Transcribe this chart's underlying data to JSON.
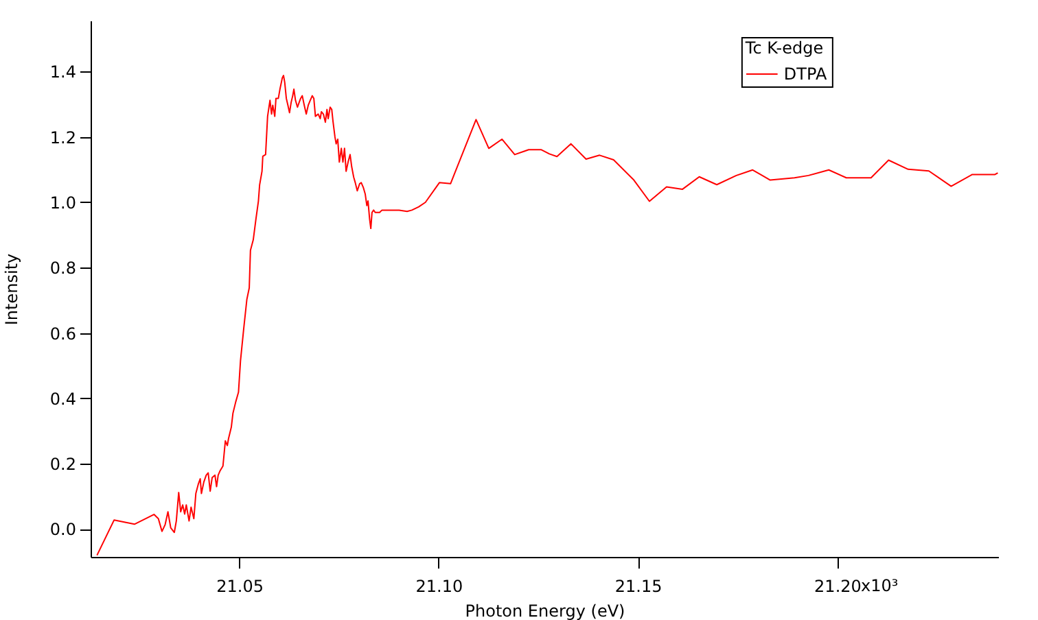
{
  "chart_data": {
    "type": "line",
    "xlabel": "Photon Energy (eV)",
    "ylabel": "Intensity",
    "legend_title": "Tc K-edge",
    "legend": "top right",
    "grid": false,
    "annotations": [
      "x10³"
    ],
    "xlim": [
      21.0127,
      21.2404
    ],
    "ylim": [
      -0.085,
      1.556
    ],
    "xticks": [
      21.05,
      {
        "value": 21.1,
        "label": "21.10"
      },
      21.15,
      {
        "value": 21.2,
        "label": "21.20"
      }
    ],
    "yticks": [
      {
        "value": 0,
        "label": "0.0"
      },
      0.2,
      0.4,
      0.6,
      0.8,
      {
        "value": 1,
        "label": "1.0"
      },
      1.2,
      1.4
    ],
    "x": [
      21.0143,
      21.0186,
      21.0237,
      21.0286,
      21.0297,
      21.0306,
      21.0314,
      21.0321,
      21.0328,
      21.0337,
      21.0342,
      21.0348,
      21.0353,
      21.0358,
      21.0363,
      21.0367,
      21.0374,
      21.0379,
      21.0386,
      21.0391,
      21.0397,
      21.0402,
      21.0405,
      21.0411,
      21.0417,
      21.0422,
      21.0427,
      21.0432,
      21.0439,
      21.0443,
      21.0447,
      21.0452,
      21.0459,
      21.0465,
      21.047,
      21.0473,
      21.048,
      21.0484,
      21.0491,
      21.0498,
      21.0503,
      21.0511,
      21.0519,
      21.0525,
      21.0528,
      21.0535,
      21.0542,
      21.0548,
      21.0551,
      21.0557,
      21.0559,
      21.0566,
      21.0571,
      21.0577,
      21.0581,
      21.0584,
      21.0589,
      21.0592,
      21.0598,
      21.0602,
      21.0608,
      21.0611,
      21.0614,
      21.0618,
      21.0622,
      21.0626,
      21.063,
      21.0634,
      21.0637,
      21.0641,
      21.0646,
      21.065,
      21.0654,
      21.0658,
      21.0663,
      21.0668,
      21.0673,
      21.0678,
      21.0683,
      21.0687,
      21.0691,
      21.0698,
      21.0703,
      21.0706,
      21.0711,
      21.0716,
      21.072,
      21.0723,
      21.0728,
      21.0732,
      21.0735,
      21.074,
      21.0743,
      21.0747,
      21.0751,
      21.0756,
      21.076,
      21.0764,
      21.0768,
      21.0773,
      21.0778,
      21.0782,
      21.0787,
      21.0791,
      21.0796,
      21.0802,
      21.0806,
      21.0811,
      21.0816,
      21.082,
      21.0823,
      21.0827,
      21.083,
      21.0833,
      21.0837,
      21.0841,
      21.0852,
      21.0858,
      21.0901,
      21.0921,
      21.0933,
      21.095,
      21.0967,
      21.1002,
      21.103,
      21.1094,
      21.1126,
      21.1159,
      21.1191,
      21.1226,
      21.1257,
      21.1278,
      21.1297,
      21.1332,
      21.137,
      21.1404,
      21.1439,
      21.149,
      21.1529,
      21.1572,
      21.1612,
      21.1654,
      21.1698,
      21.1747,
      21.1788,
      21.1832,
      21.1893,
      21.1928,
      21.1979,
      21.2023,
      21.2085,
      21.2129,
      21.2178,
      21.223,
      21.2286,
      21.2339,
      21.2396,
      21.2403
    ],
    "series": [
      {
        "name": "DTPA",
        "color": "#ff0000",
        "values": [
          -0.08,
          0.028,
          0.015,
          0.045,
          0.032,
          -0.007,
          0.014,
          0.053,
          0.004,
          -0.01,
          0.025,
          0.112,
          0.053,
          0.074,
          0.046,
          0.074,
          0.025,
          0.067,
          0.032,
          0.109,
          0.137,
          0.154,
          0.109,
          0.144,
          0.165,
          0.172,
          0.116,
          0.158,
          0.165,
          0.13,
          0.165,
          0.179,
          0.193,
          0.27,
          0.256,
          0.277,
          0.312,
          0.354,
          0.389,
          0.419,
          0.515,
          0.612,
          0.703,
          0.738,
          0.853,
          0.885,
          0.951,
          1.004,
          1.053,
          1.095,
          1.141,
          1.146,
          1.263,
          1.312,
          1.27,
          1.297,
          1.263,
          1.318,
          1.318,
          1.346,
          1.381,
          1.388,
          1.367,
          1.318,
          1.297,
          1.274,
          1.305,
          1.326,
          1.346,
          1.312,
          1.291,
          1.305,
          1.318,
          1.326,
          1.297,
          1.27,
          1.297,
          1.312,
          1.326,
          1.318,
          1.263,
          1.27,
          1.256,
          1.277,
          1.27,
          1.245,
          1.284,
          1.256,
          1.291,
          1.284,
          1.249,
          1.2,
          1.179,
          1.193,
          1.123,
          1.165,
          1.123,
          1.165,
          1.095,
          1.123,
          1.146,
          1.109,
          1.077,
          1.06,
          1.035,
          1.057,
          1.06,
          1.046,
          1.025,
          0.99,
          1.004,
          0.948,
          0.92,
          0.969,
          0.976,
          0.969,
          0.969,
          0.976,
          0.976,
          0.972,
          0.976,
          0.986,
          1.0,
          1.06,
          1.057,
          1.253,
          1.165,
          1.193,
          1.146,
          1.161,
          1.161,
          1.148,
          1.14,
          1.179,
          1.132,
          1.144,
          1.13,
          1.068,
          1.003,
          1.047,
          1.04,
          1.078,
          1.054,
          1.082,
          1.099,
          1.068,
          1.075,
          1.082,
          1.099,
          1.075,
          1.075,
          1.129,
          1.101,
          1.096,
          1.049,
          1.085,
          1.085,
          1.09
        ]
      }
    ]
  }
}
